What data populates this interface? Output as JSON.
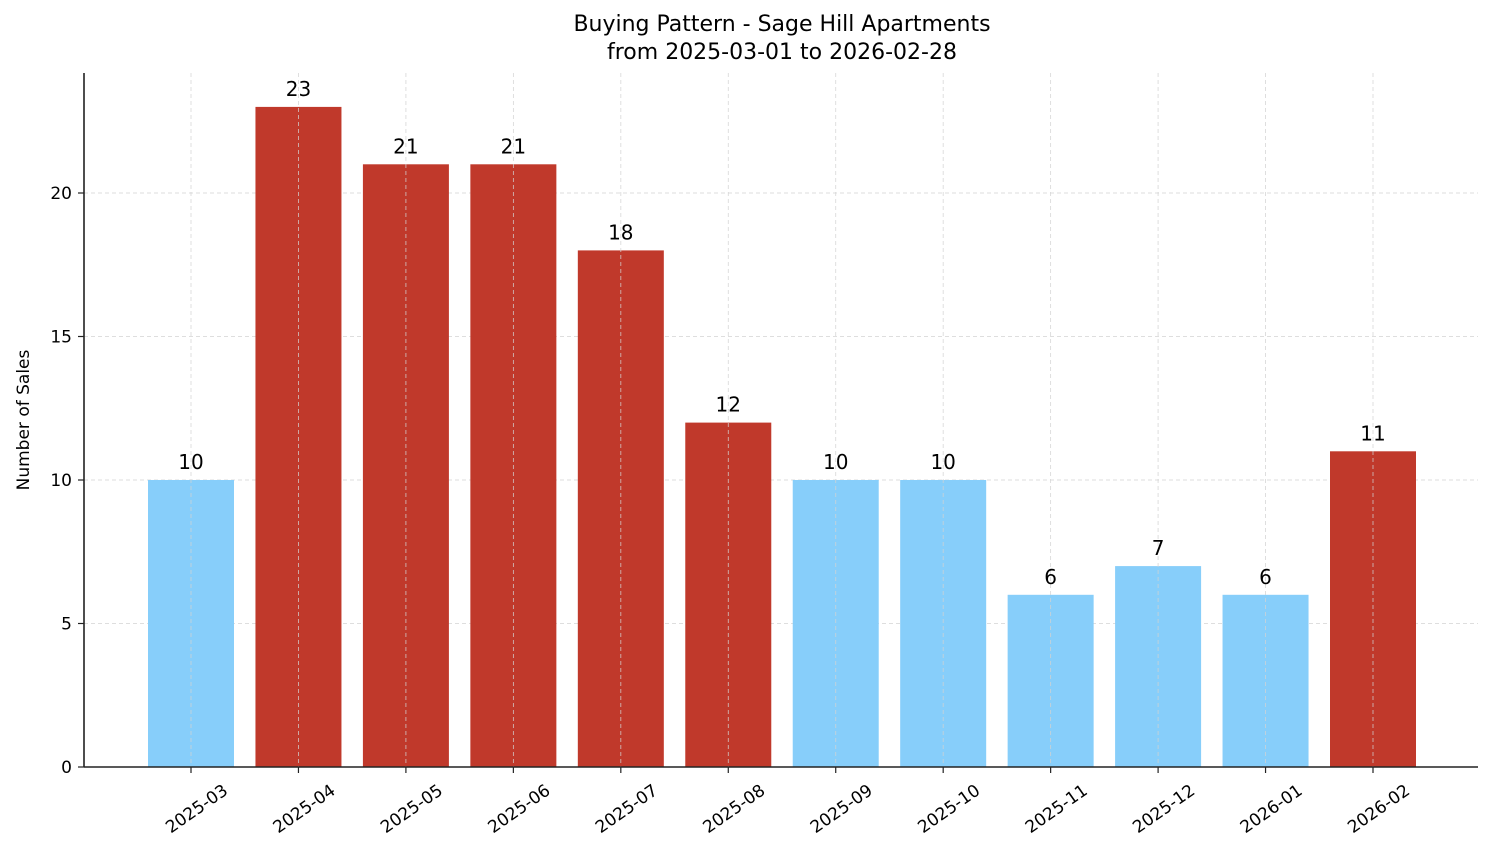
{
  "chart_data": {
    "type": "bar",
    "title": "Buying Pattern - Sage Hill Apartments",
    "subtitle": "from 2025-03-01 to 2026-02-28",
    "xlabel": "",
    "ylabel": "Number of Sales",
    "categories": [
      "2025-03",
      "2025-04",
      "2025-05",
      "2025-06",
      "2025-07",
      "2025-08",
      "2025-09",
      "2025-10",
      "2025-11",
      "2025-12",
      "2026-01",
      "2026-02"
    ],
    "values": [
      10,
      23,
      21,
      21,
      18,
      12,
      10,
      10,
      6,
      7,
      6,
      11
    ],
    "bar_colors": [
      "#87CEFA",
      "#C0392B",
      "#C0392B",
      "#C0392B",
      "#C0392B",
      "#C0392B",
      "#87CEFA",
      "#87CEFA",
      "#87CEFA",
      "#87CEFA",
      "#87CEFA",
      "#C0392B"
    ],
    "highlight_color": "#C0392B",
    "normal_color": "#87CEFA",
    "ylim": [
      0,
      24.2
    ],
    "yticks": [
      0,
      5,
      10,
      15,
      20
    ],
    "grid": true,
    "legend": null,
    "data_labels": true
  },
  "colors": {
    "high": "#C0392B",
    "low": "#87CEFA",
    "grid": "#d3d3d3",
    "axis": "#222222"
  }
}
